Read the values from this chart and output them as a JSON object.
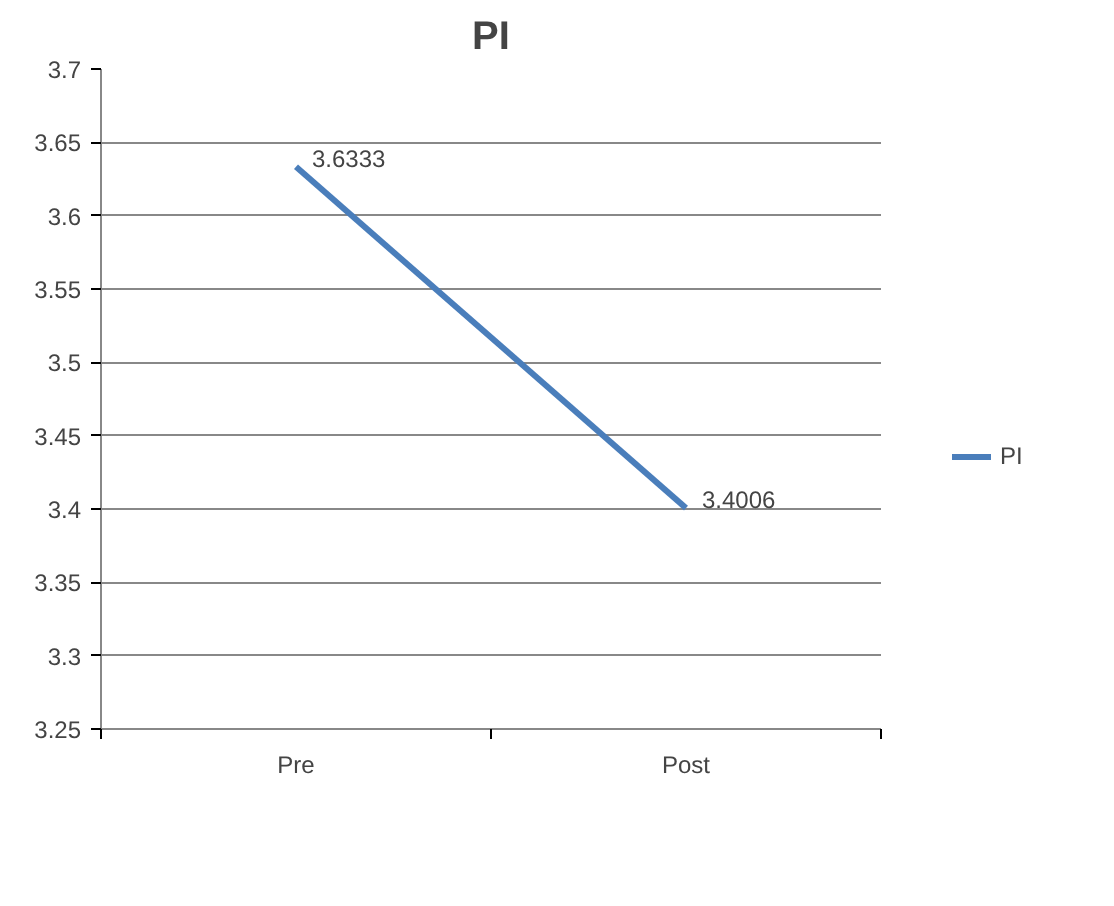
{
  "chart_data": {
    "type": "line",
    "title": "PI",
    "categories": [
      "Pre",
      "Post"
    ],
    "series": [
      {
        "name": "PI",
        "color": "#4a7ebb",
        "values": [
          3.6333,
          3.4006
        ]
      }
    ],
    "ylim": [
      3.25,
      3.7
    ],
    "yticks": [
      3.25,
      3.3,
      3.35,
      3.4,
      3.45,
      3.5,
      3.55,
      3.6,
      3.65,
      3.7
    ],
    "grid": "y",
    "legend": "right",
    "data_labels": true,
    "marker": "none",
    "line_style": "solid"
  }
}
